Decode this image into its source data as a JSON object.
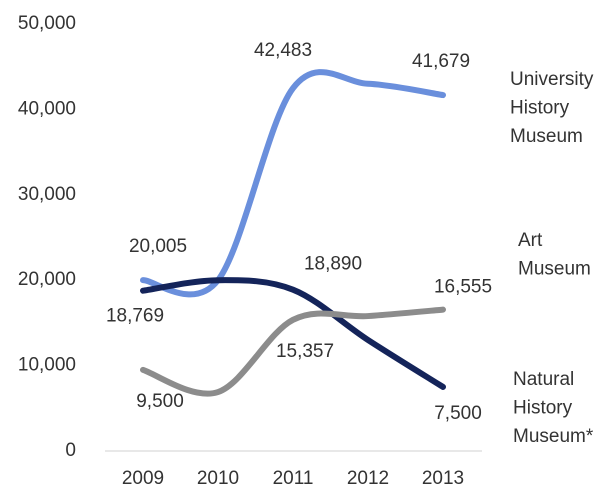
{
  "chart_data": {
    "type": "line",
    "categories": [
      "2009",
      "2010",
      "2011",
      "2012",
      "2013"
    ],
    "series": [
      {
        "name": "University History Museum",
        "color": "#6a8fdc",
        "values": [
          20005,
          20000,
          42483,
          43000,
          41679
        ],
        "value_labels": [
          "20,005",
          null,
          "42,483",
          null,
          "41,679"
        ]
      },
      {
        "name": "Art Museum",
        "color": "#14245a",
        "values": [
          18769,
          20000,
          18890,
          13000,
          7500
        ],
        "value_labels": [
          "18,769",
          null,
          "18,890",
          null,
          "7,500"
        ]
      },
      {
        "name": "Natural History Museum*",
        "color": "#8c8c8c",
        "values": [
          9500,
          6900,
          15357,
          15800,
          16555
        ],
        "value_labels": [
          "9,500",
          null,
          "15,357",
          null,
          "16,555"
        ]
      }
    ],
    "ylim": [
      0,
      50000
    ],
    "yticks": [
      {
        "value": 0,
        "label": "0"
      },
      {
        "value": 10000,
        "label": "10,000"
      },
      {
        "value": 20000,
        "label": "20,000"
      },
      {
        "value": 30000,
        "label": "30,000"
      },
      {
        "value": 40000,
        "label": "40,000"
      },
      {
        "value": 50000,
        "label": "50,000"
      }
    ],
    "grid": false
  }
}
